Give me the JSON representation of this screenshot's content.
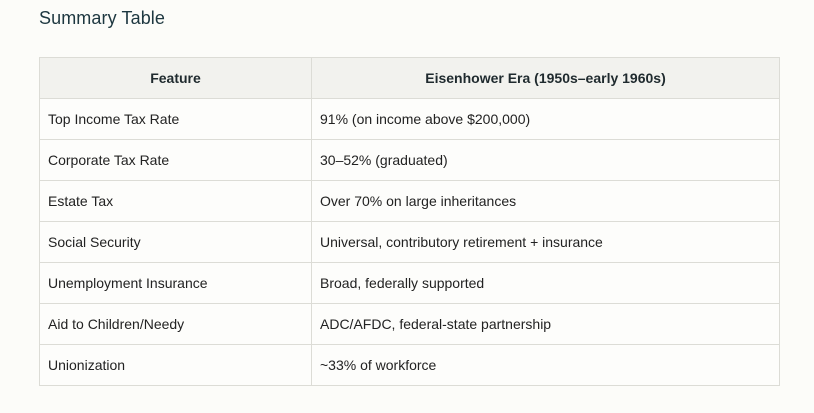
{
  "title": "Summary Table",
  "table": {
    "headers": [
      "Feature",
      "Eisenhower Era (1950s–early 1960s)"
    ],
    "rows": [
      [
        "Top Income Tax Rate",
        "91% (on income above $200,000)"
      ],
      [
        "Corporate Tax Rate",
        "30–52% (graduated)"
      ],
      [
        "Estate Tax",
        "Over 70% on large inheritances"
      ],
      [
        "Social Security",
        "Universal, contributory retirement + insurance"
      ],
      [
        "Unemployment Insurance",
        "Broad, federally supported"
      ],
      [
        "Aid to Children/Needy",
        "ADC/AFDC, federal-state partnership"
      ],
      [
        "Unionization",
        "~33% of workforce"
      ]
    ]
  }
}
